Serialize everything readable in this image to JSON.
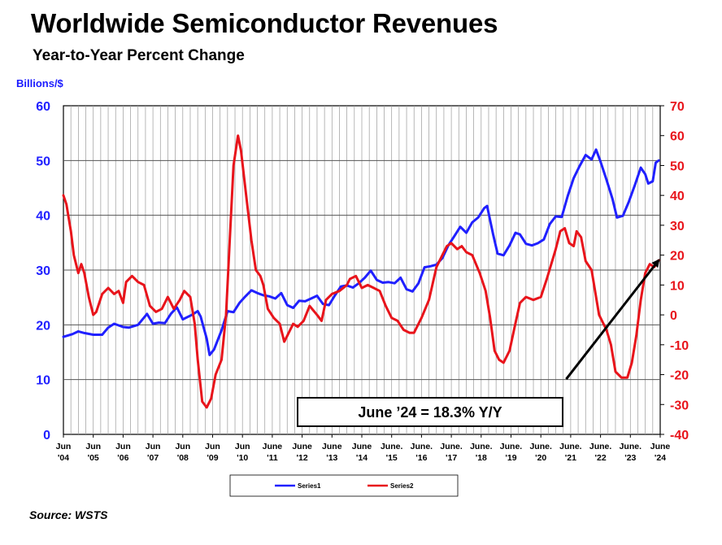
{
  "title": "Worldwide Semiconductor Revenues",
  "subtitle": "Year-to-Year Percent Change",
  "source": "Source: WSTS",
  "chart_data": {
    "type": "line",
    "ylabel_left": "Billions/$",
    "left_axis": {
      "min": 0,
      "max": 60,
      "ticks": [
        "0",
        "10",
        "20",
        "30",
        "40",
        "50",
        "60"
      ]
    },
    "right_axis": {
      "min": -40,
      "max": 70,
      "ticks": [
        "-40",
        "-30",
        "-20",
        "-10",
        "0",
        "10",
        "20",
        "30",
        "40",
        "50",
        "60",
        "70"
      ]
    },
    "x_ticks": [
      [
        "Jun",
        "'04"
      ],
      [
        "Jun",
        "'05"
      ],
      [
        "Jun",
        "'06"
      ],
      [
        "Jun",
        "'07"
      ],
      [
        "Jun",
        "'08"
      ],
      [
        "Jun",
        "'09"
      ],
      [
        "Jun",
        "'10"
      ],
      [
        "June",
        "'11"
      ],
      [
        "June",
        "'12"
      ],
      [
        "June",
        "'13"
      ],
      [
        "June",
        "'14"
      ],
      [
        "June.",
        "'15"
      ],
      [
        "June.",
        "'16"
      ],
      [
        "June.",
        "'17"
      ],
      [
        "June.",
        "'18"
      ],
      [
        "June.",
        "'19"
      ],
      [
        "June.",
        "'20"
      ],
      [
        "June.",
        "'21"
      ],
      [
        "June.",
        "'22"
      ],
      [
        "June.",
        "'23"
      ],
      [
        "June",
        "'24"
      ]
    ],
    "x_range": [
      2004.5,
      2024.5
    ],
    "series": [
      {
        "name": "Series1",
        "axis": "left",
        "color": "#2020ff",
        "points": [
          [
            2004.5,
            17.8
          ],
          [
            2004.8,
            18.3
          ],
          [
            2005.0,
            18.8
          ],
          [
            2005.2,
            18.5
          ],
          [
            2005.5,
            18.2
          ],
          [
            2005.8,
            18.2
          ],
          [
            2006.0,
            19.5
          ],
          [
            2006.2,
            20.2
          ],
          [
            2006.5,
            19.6
          ],
          [
            2006.7,
            19.5
          ],
          [
            2007.0,
            20.0
          ],
          [
            2007.3,
            22.0
          ],
          [
            2007.5,
            20.2
          ],
          [
            2007.7,
            20.4
          ],
          [
            2007.9,
            20.3
          ],
          [
            2008.1,
            22.0
          ],
          [
            2008.3,
            23.2
          ],
          [
            2008.5,
            21.0
          ],
          [
            2008.8,
            21.8
          ],
          [
            2009.0,
            22.5
          ],
          [
            2009.1,
            21.5
          ],
          [
            2009.3,
            17.5
          ],
          [
            2009.4,
            14.5
          ],
          [
            2009.55,
            15.5
          ],
          [
            2009.8,
            19.0
          ],
          [
            2010.0,
            22.5
          ],
          [
            2010.2,
            22.3
          ],
          [
            2010.4,
            24.0
          ],
          [
            2010.6,
            25.2
          ],
          [
            2010.8,
            26.3
          ],
          [
            2011.0,
            25.8
          ],
          [
            2011.2,
            25.4
          ],
          [
            2011.4,
            25.2
          ],
          [
            2011.6,
            24.8
          ],
          [
            2011.8,
            25.8
          ],
          [
            2012.0,
            23.6
          ],
          [
            2012.2,
            23.1
          ],
          [
            2012.4,
            24.4
          ],
          [
            2012.6,
            24.3
          ],
          [
            2012.8,
            24.8
          ],
          [
            2013.0,
            25.3
          ],
          [
            2013.2,
            23.8
          ],
          [
            2013.4,
            23.6
          ],
          [
            2013.6,
            25.4
          ],
          [
            2013.8,
            27.0
          ],
          [
            2014.0,
            27.2
          ],
          [
            2014.2,
            26.8
          ],
          [
            2014.4,
            27.6
          ],
          [
            2014.6,
            28.6
          ],
          [
            2014.8,
            29.9
          ],
          [
            2015.0,
            28.2
          ],
          [
            2015.2,
            27.7
          ],
          [
            2015.4,
            27.8
          ],
          [
            2015.6,
            27.6
          ],
          [
            2015.8,
            28.6
          ],
          [
            2016.0,
            26.5
          ],
          [
            2016.2,
            26.1
          ],
          [
            2016.4,
            27.6
          ],
          [
            2016.6,
            30.5
          ],
          [
            2016.8,
            30.7
          ],
          [
            2017.0,
            31.0
          ],
          [
            2017.2,
            32.2
          ],
          [
            2017.4,
            34.5
          ],
          [
            2017.6,
            36.2
          ],
          [
            2017.8,
            37.9
          ],
          [
            2018.0,
            36.8
          ],
          [
            2018.2,
            38.7
          ],
          [
            2018.4,
            39.6
          ],
          [
            2018.6,
            41.3
          ],
          [
            2018.7,
            41.7
          ],
          [
            2018.9,
            36.5
          ],
          [
            2019.05,
            33.0
          ],
          [
            2019.25,
            32.7
          ],
          [
            2019.45,
            34.5
          ],
          [
            2019.65,
            36.8
          ],
          [
            2019.8,
            36.5
          ],
          [
            2020.0,
            34.8
          ],
          [
            2020.2,
            34.5
          ],
          [
            2020.4,
            34.9
          ],
          [
            2020.6,
            35.6
          ],
          [
            2020.8,
            38.4
          ],
          [
            2021.0,
            39.8
          ],
          [
            2021.2,
            39.7
          ],
          [
            2021.4,
            43.5
          ],
          [
            2021.6,
            46.8
          ],
          [
            2021.8,
            49.0
          ],
          [
            2022.0,
            51.0
          ],
          [
            2022.2,
            50.2
          ],
          [
            2022.35,
            52.0
          ],
          [
            2022.5,
            49.8
          ],
          [
            2022.7,
            46.5
          ],
          [
            2022.9,
            43.0
          ],
          [
            2023.05,
            39.6
          ],
          [
            2023.25,
            39.9
          ],
          [
            2023.45,
            42.5
          ],
          [
            2023.65,
            45.5
          ],
          [
            2023.85,
            48.7
          ],
          [
            2024.0,
            47.5
          ],
          [
            2024.1,
            45.8
          ],
          [
            2024.25,
            46.2
          ],
          [
            2024.35,
            49.6
          ],
          [
            2024.45,
            50.0
          ]
        ]
      },
      {
        "name": "Series2",
        "axis": "right",
        "color": "#e8141b",
        "points": [
          [
            2004.5,
            40
          ],
          [
            2004.6,
            37
          ],
          [
            2004.75,
            28
          ],
          [
            2004.85,
            20
          ],
          [
            2005.0,
            14
          ],
          [
            2005.1,
            17
          ],
          [
            2005.2,
            14
          ],
          [
            2005.35,
            6
          ],
          [
            2005.5,
            0
          ],
          [
            2005.6,
            1
          ],
          [
            2005.8,
            7
          ],
          [
            2006.0,
            9
          ],
          [
            2006.2,
            7
          ],
          [
            2006.35,
            8
          ],
          [
            2006.5,
            4
          ],
          [
            2006.6,
            11
          ],
          [
            2006.8,
            13
          ],
          [
            2007.0,
            11
          ],
          [
            2007.2,
            10
          ],
          [
            2007.4,
            3
          ],
          [
            2007.6,
            1
          ],
          [
            2007.8,
            2
          ],
          [
            2008.0,
            6
          ],
          [
            2008.2,
            2
          ],
          [
            2008.4,
            5
          ],
          [
            2008.55,
            8
          ],
          [
            2008.75,
            6
          ],
          [
            2008.9,
            -3
          ],
          [
            2009.0,
            -15
          ],
          [
            2009.15,
            -29
          ],
          [
            2009.3,
            -31
          ],
          [
            2009.45,
            -28
          ],
          [
            2009.6,
            -20
          ],
          [
            2009.8,
            -15
          ],
          [
            2009.95,
            0
          ],
          [
            2010.1,
            30
          ],
          [
            2010.2,
            50
          ],
          [
            2010.35,
            60
          ],
          [
            2010.45,
            55
          ],
          [
            2010.6,
            42
          ],
          [
            2010.8,
            25
          ],
          [
            2010.95,
            15
          ],
          [
            2011.1,
            13
          ],
          [
            2011.2,
            10
          ],
          [
            2011.35,
            2
          ],
          [
            2011.55,
            -1
          ],
          [
            2011.75,
            -3
          ],
          [
            2011.9,
            -9
          ],
          [
            2012.0,
            -7
          ],
          [
            2012.2,
            -3
          ],
          [
            2012.35,
            -4
          ],
          [
            2012.55,
            -2
          ],
          [
            2012.75,
            3
          ],
          [
            2013.0,
            0
          ],
          [
            2013.15,
            -2
          ],
          [
            2013.3,
            5
          ],
          [
            2013.5,
            7
          ],
          [
            2013.75,
            8
          ],
          [
            2014.0,
            10
          ],
          [
            2014.1,
            12
          ],
          [
            2014.3,
            13
          ],
          [
            2014.5,
            9
          ],
          [
            2014.7,
            10
          ],
          [
            2014.9,
            9
          ],
          [
            2015.1,
            8
          ],
          [
            2015.3,
            3
          ],
          [
            2015.5,
            -1
          ],
          [
            2015.7,
            -2
          ],
          [
            2015.9,
            -5
          ],
          [
            2016.1,
            -6
          ],
          [
            2016.25,
            -6
          ],
          [
            2016.5,
            -1
          ],
          [
            2016.75,
            5
          ],
          [
            2017.0,
            16
          ],
          [
            2017.2,
            20
          ],
          [
            2017.35,
            23
          ],
          [
            2017.5,
            24
          ],
          [
            2017.7,
            22
          ],
          [
            2017.85,
            23
          ],
          [
            2018.0,
            21
          ],
          [
            2018.2,
            20
          ],
          [
            2018.45,
            14
          ],
          [
            2018.65,
            8
          ],
          [
            2018.8,
            -1
          ],
          [
            2018.95,
            -12
          ],
          [
            2019.1,
            -15
          ],
          [
            2019.25,
            -16
          ],
          [
            2019.45,
            -12
          ],
          [
            2019.6,
            -5
          ],
          [
            2019.8,
            4
          ],
          [
            2020.0,
            6
          ],
          [
            2020.25,
            5
          ],
          [
            2020.5,
            6
          ],
          [
            2020.7,
            12
          ],
          [
            2020.85,
            17
          ],
          [
            2021.0,
            22
          ],
          [
            2021.15,
            28
          ],
          [
            2021.3,
            29
          ],
          [
            2021.45,
            24
          ],
          [
            2021.6,
            23
          ],
          [
            2021.7,
            28
          ],
          [
            2021.85,
            26
          ],
          [
            2022.0,
            18
          ],
          [
            2022.2,
            15
          ],
          [
            2022.45,
            0
          ],
          [
            2022.7,
            -5
          ],
          [
            2022.85,
            -10
          ],
          [
            2023.0,
            -19
          ],
          [
            2023.2,
            -21
          ],
          [
            2023.4,
            -21
          ],
          [
            2023.55,
            -16
          ],
          [
            2023.7,
            -7
          ],
          [
            2023.85,
            5
          ],
          [
            2024.0,
            14
          ],
          [
            2024.15,
            17
          ],
          [
            2024.3,
            16
          ],
          [
            2024.45,
            18.3
          ]
        ]
      }
    ],
    "annotation": {
      "text": "June ’24 = 18.3% Y/Y",
      "arrow_from": [
        2021.35,
        -21.5
      ],
      "arrow_to": [
        2024.45,
        18.3
      ]
    },
    "legend": {
      "placement": "bottom-center",
      "entries": [
        "Series1",
        "Series2"
      ]
    }
  }
}
